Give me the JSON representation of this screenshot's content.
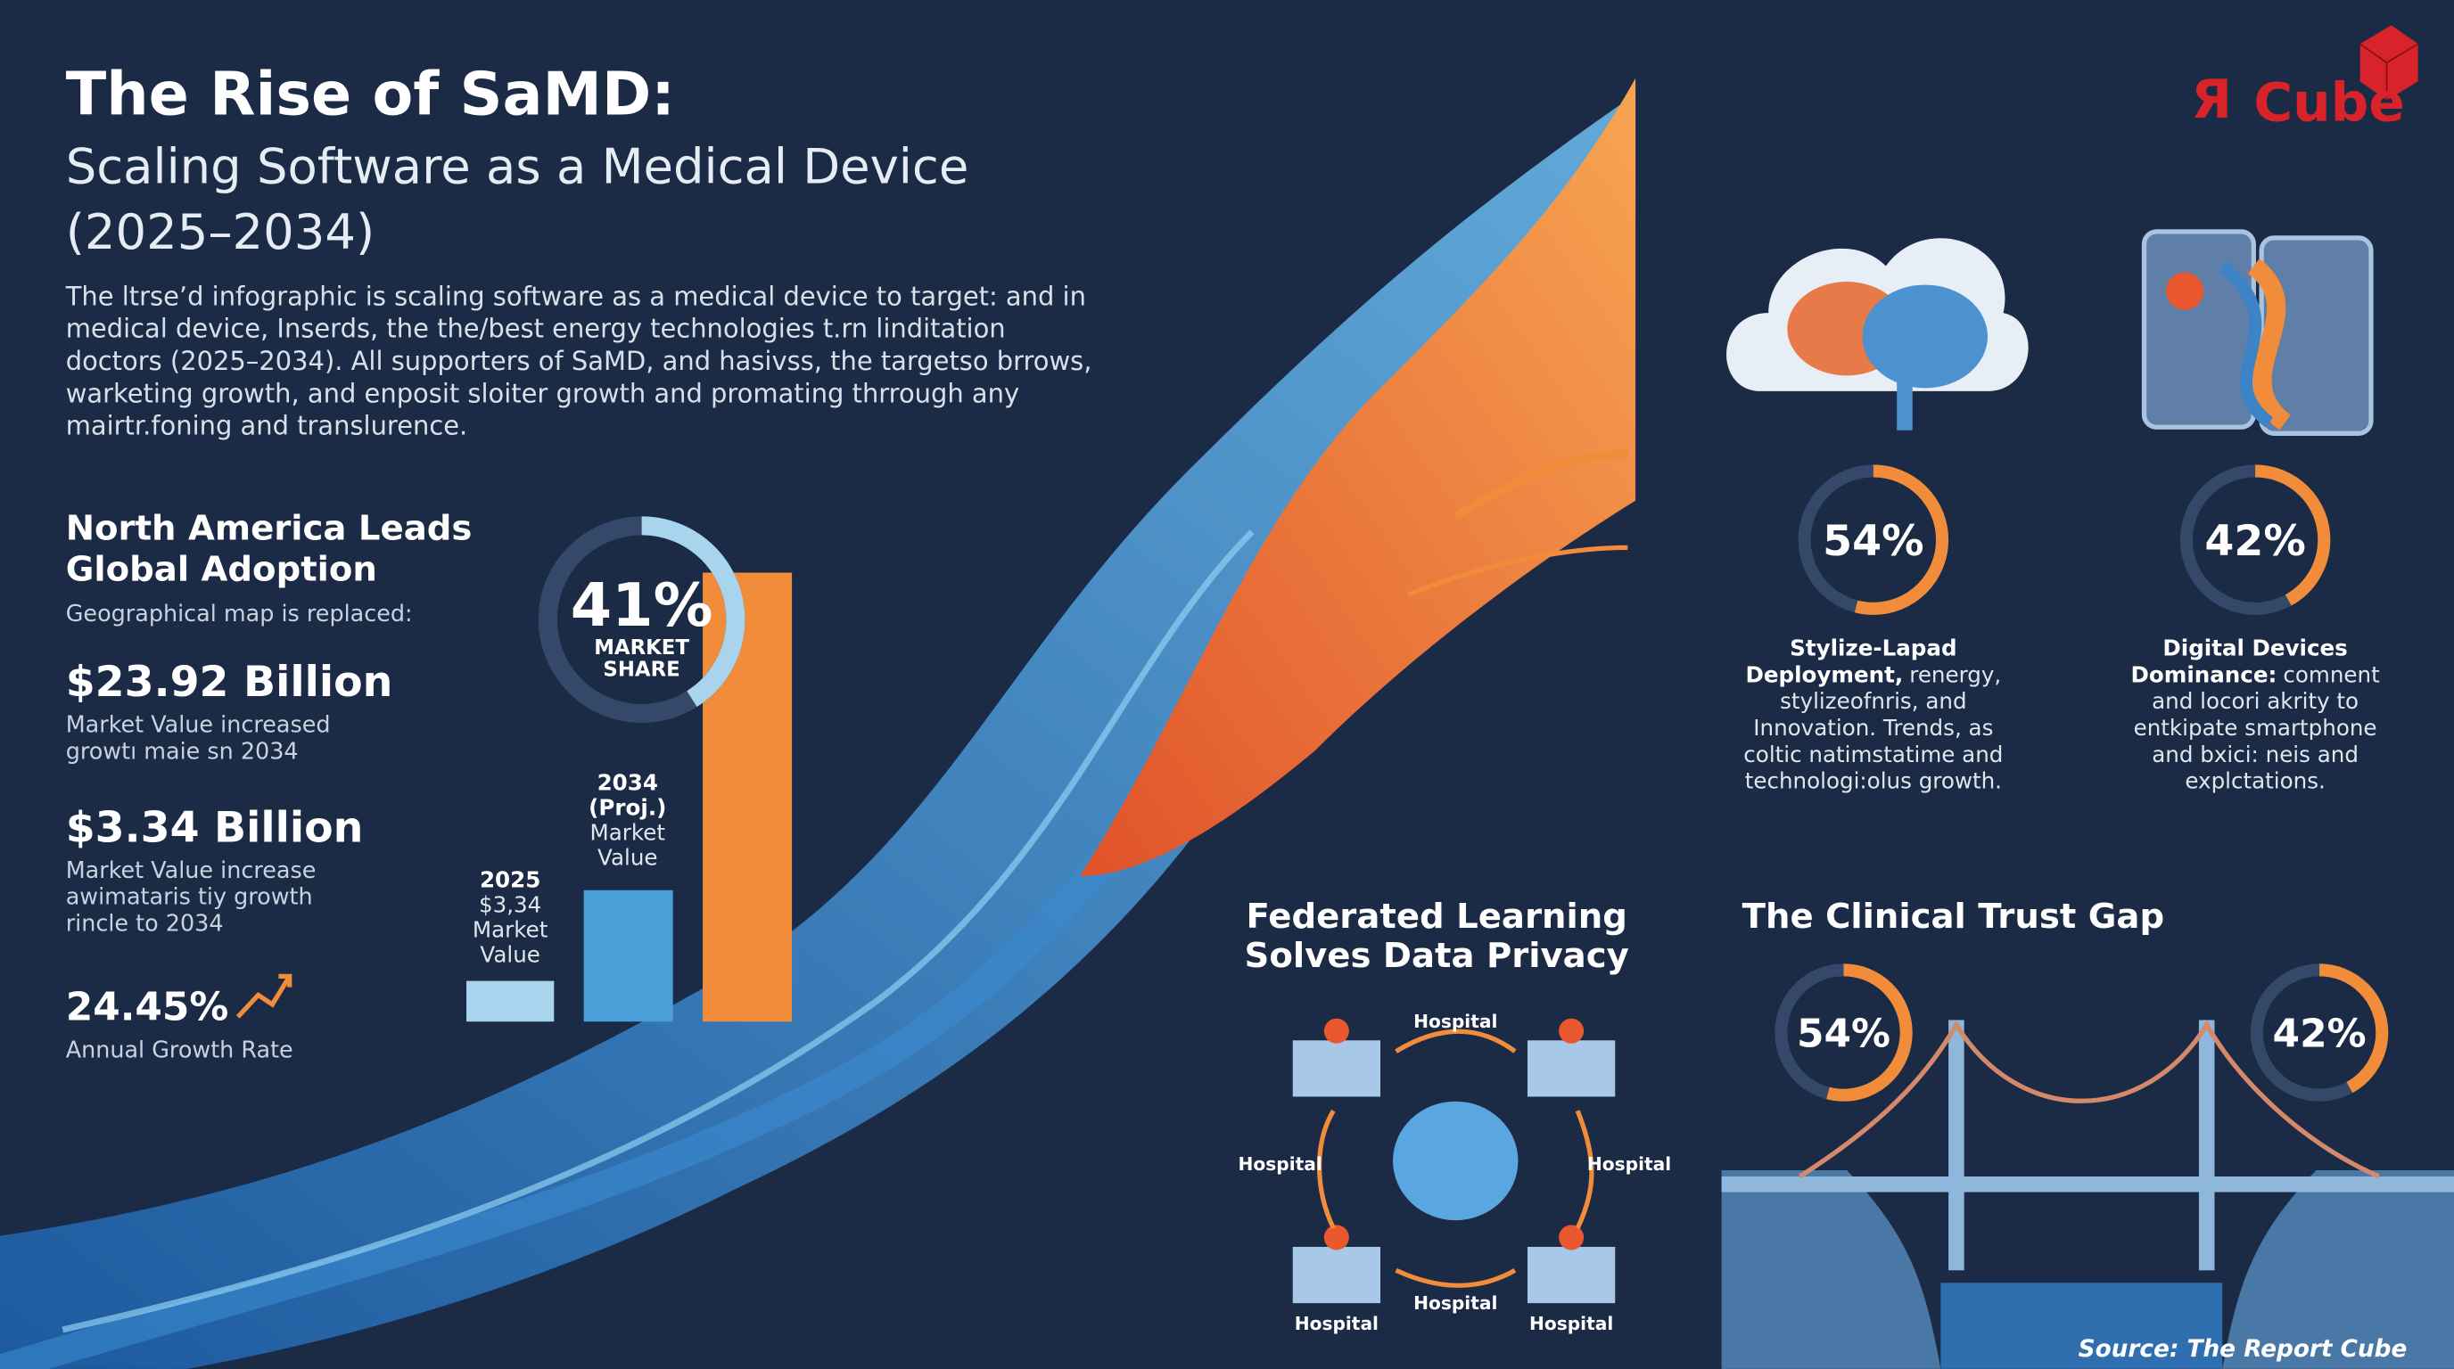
{
  "header": {
    "title": "The Rise of SaMD:",
    "subtitle": [
      "Scaling Software as a Medical Device",
      "(2025–2034)"
    ],
    "intro": [
      "The ltrse’d infographic is scaling software as a medical device to target: and in",
      "medical device, Inserds, the the/best energy technologies t.rn linditation",
      "doctors (2025–2034). All supporters of SaMD, and hasivss, the targetso brrows,",
      "warketing growth, and enposit sloiter growth and promating thrrough any",
      "mairtr.foning and translurence."
    ]
  },
  "logo": {
    "mark": "Я",
    "name": "Cube"
  },
  "north_america": {
    "heading": [
      "North America Leads",
      "Global Adoption"
    ],
    "note": "Geographical map is replaced:",
    "stats": [
      {
        "value": "$23.92 Billion",
        "description": [
          "Market Value increased",
          "growtı maie sn 2034"
        ]
      },
      {
        "value": "$3.34 Billion",
        "description": [
          "Market Value increase",
          "awimatаris tiy growth",
          "rincle to 2034"
        ]
      },
      {
        "value": "24.45%",
        "description": [
          "Annual Growth Rate"
        ]
      }
    ]
  },
  "market_share": {
    "value": 41,
    "label": "41%",
    "caption": [
      "MARKET",
      "SHARE"
    ]
  },
  "bars": [
    {
      "label": [
        "2025",
        "$3,34",
        "Market",
        "Value"
      ]
    },
    {
      "label": [
        "2034",
        "(Proj.)",
        "Market",
        "Value"
      ]
    }
  ],
  "adoption": [
    {
      "value": 54,
      "label": "54%",
      "title": [
        "Stylize-Lapad",
        "Deployment,"
      ],
      "body": [
        "renergy,",
        "stylizeofnris, and",
        "Innovation. Trends, as",
        "coltic natimstatime and",
        "technologi:olus growth."
      ]
    },
    {
      "value": 42,
      "label": "42%",
      "title": [
        "Digital Devices",
        "Dominance:"
      ],
      "body": [
        "comnent",
        "and locori akrity to",
        "entkipate smartphone",
        "and bxici: neis and",
        "explctations."
      ]
    }
  ],
  "federated": {
    "title": [
      "Federated Learning",
      "Solves Data Privacy"
    ],
    "hospitals": [
      "Hospital",
      "Hospital",
      "Hospital",
      "Hospital",
      "Hospital",
      "Hospital"
    ]
  },
  "trust_gap": {
    "title": "The Clinical Trust Gap",
    "donuts": [
      {
        "value": 54,
        "label": "54%"
      },
      {
        "value": 42,
        "label": "42%"
      }
    ]
  },
  "source": "Source: The Report Cube"
}
